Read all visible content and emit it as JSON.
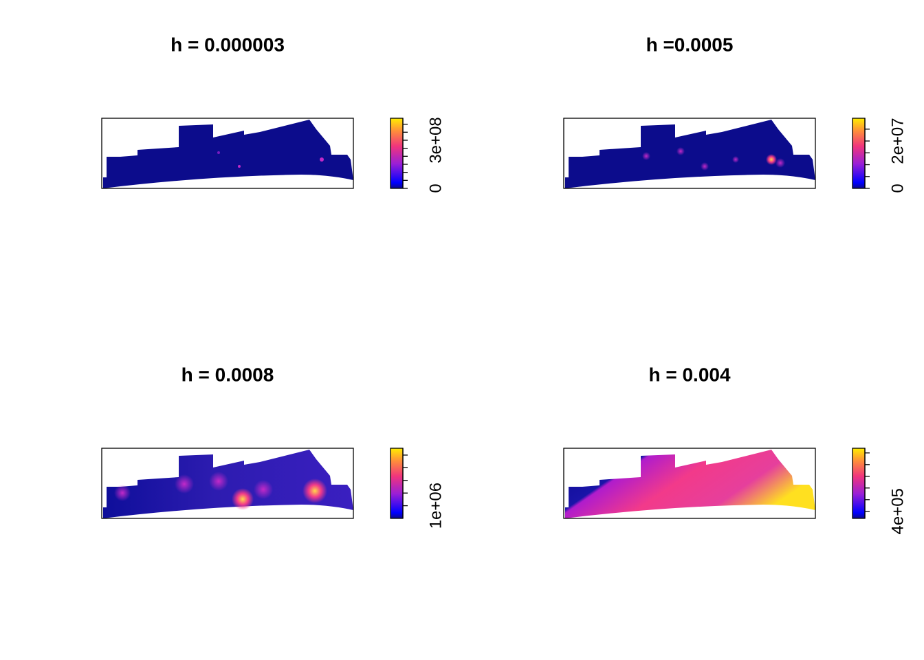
{
  "chart_data": [
    {
      "type": "raster",
      "title": "h = 0.000003",
      "zlim": [
        0,
        437000000
      ],
      "zticks": [
        0,
        {
          "value": 300000000,
          "label": "3e+08"
        }
      ],
      "minor_ticks": [
        50000000,
        100000000,
        150000000,
        200000000,
        250000000,
        350000000,
        400000000
      ]
    },
    {
      "type": "raster",
      "title": "h =0.0005",
      "zlim": [
        0,
        29600000
      ],
      "zticks": [
        0,
        {
          "value": 20000000,
          "label": "2e+07"
        }
      ],
      "minor_ticks": [
        5000000,
        10000000,
        15000000,
        25000000
      ]
    },
    {
      "type": "raster",
      "title": "h = 0.0008",
      "zlim": [
        500000,
        3270000
      ],
      "zticks": [
        {
          "value": 1000000,
          "label": "1e+06"
        }
      ],
      "minor_ticks": [
        1500000,
        2000000,
        2500000,
        3000000
      ]
    },
    {
      "type": "raster",
      "title": "h = 0.004",
      "zlim": [
        340000,
        940000
      ],
      "zticks": [
        {
          "value": 400000,
          "label": "4e+05"
        }
      ],
      "minor_ticks": [
        500000,
        600000,
        700000,
        800000,
        900000
      ]
    }
  ]
}
